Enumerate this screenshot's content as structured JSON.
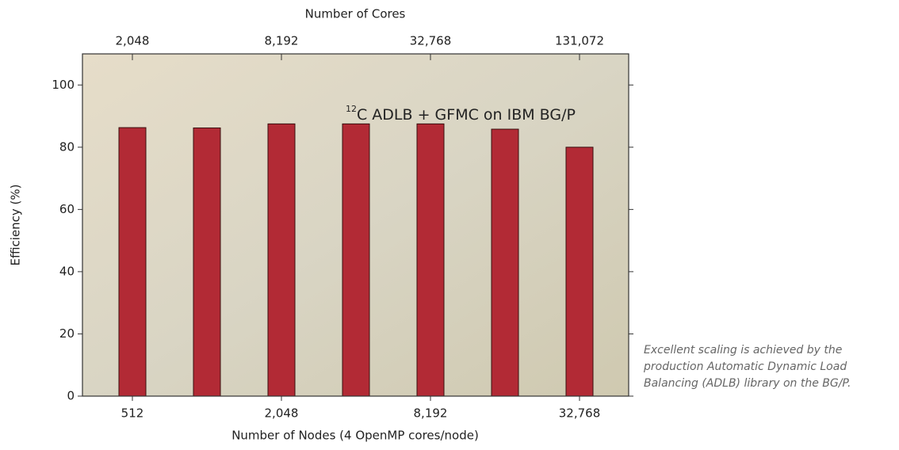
{
  "chart_data": {
    "type": "bar",
    "title": "Number of Cores",
    "x_label": "Number of Nodes (4 OpenMP cores/node)",
    "y_label": "Efficiency (%)",
    "annotation_superscript": "12",
    "annotation": "C ADLB + GFMC on IBM BG/P",
    "caption": "Excellent scaling is achieved by the production Automatic Dynamic Load Balancing (ADLB) library on the BG/P.",
    "categories": [
      "512",
      null,
      "2,048",
      null,
      "8,192",
      null,
      "32,768"
    ],
    "top_categories": [
      "2,048",
      null,
      "8,192",
      null,
      "32,768",
      null,
      "131,072"
    ],
    "values": [
      86.3,
      86.2,
      87.5,
      87.5,
      87.5,
      85.8,
      80.0
    ],
    "color": "#b22a35",
    "ylim": [
      0,
      110
    ],
    "yticks": [
      0,
      20,
      40,
      60,
      80,
      100
    ]
  }
}
